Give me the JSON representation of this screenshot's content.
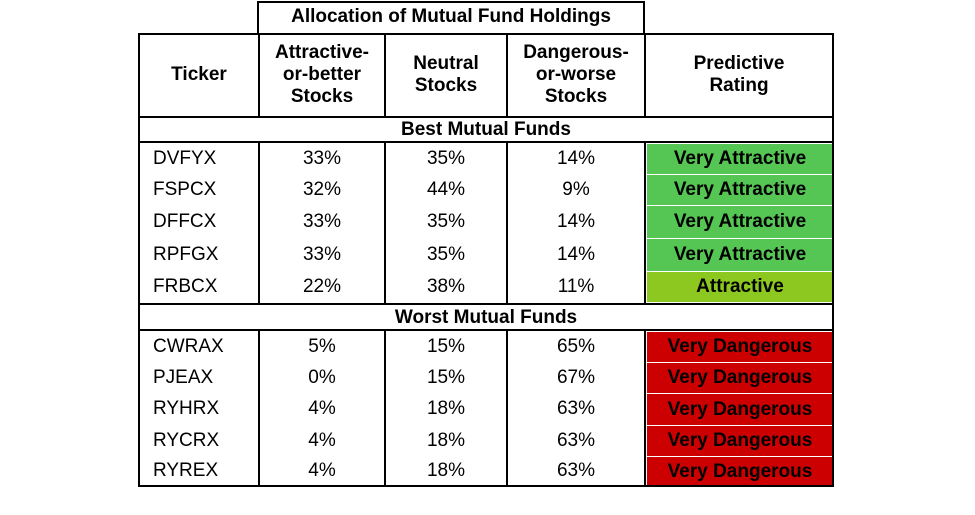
{
  "table": {
    "group_header": "Allocation of Mutual Fund Holdings",
    "columns": {
      "ticker": "Ticker",
      "attractive": "Attractive-\nor-better\nStocks",
      "neutral": "Neutral\nStocks",
      "dangerous": "Dangerous-\nor-worse\nStocks",
      "rating": "Predictive\nRating"
    },
    "best_section_label": "Best Mutual Funds",
    "worst_section_label": "Worst Mutual Funds",
    "best_rows": [
      {
        "ticker": "DVFYX",
        "attractive": "33%",
        "neutral": "35%",
        "dangerous": "14%",
        "rating": "Very Attractive",
        "rating_color": "#55c553"
      },
      {
        "ticker": "FSPCX",
        "attractive": "32%",
        "neutral": "44%",
        "dangerous": "9%",
        "rating": "Very Attractive",
        "rating_color": "#55c553"
      },
      {
        "ticker": "DFFCX",
        "attractive": "33%",
        "neutral": "35%",
        "dangerous": "14%",
        "rating": "Very Attractive",
        "rating_color": "#55c553"
      },
      {
        "ticker": "RPFGX",
        "attractive": "33%",
        "neutral": "35%",
        "dangerous": "14%",
        "rating": "Very Attractive",
        "rating_color": "#55c553"
      },
      {
        "ticker": "FRBCX",
        "attractive": "22%",
        "neutral": "38%",
        "dangerous": "11%",
        "rating": "Attractive",
        "rating_color": "#8cc820"
      }
    ],
    "worst_rows": [
      {
        "ticker": "CWRAX",
        "attractive": "5%",
        "neutral": "15%",
        "dangerous": "65%",
        "rating": "Very Dangerous",
        "rating_color": "#cc0000"
      },
      {
        "ticker": "PJEAX",
        "attractive": "0%",
        "neutral": "15%",
        "dangerous": "67%",
        "rating": "Very Dangerous",
        "rating_color": "#cc0000"
      },
      {
        "ticker": "RYHRX",
        "attractive": "4%",
        "neutral": "18%",
        "dangerous": "63%",
        "rating": "Very Dangerous",
        "rating_color": "#cc0000"
      },
      {
        "ticker": "RYCRX",
        "attractive": "4%",
        "neutral": "18%",
        "dangerous": "63%",
        "rating": "Very Dangerous",
        "rating_color": "#cc0000"
      },
      {
        "ticker": "RYREX",
        "attractive": "4%",
        "neutral": "18%",
        "dangerous": "63%",
        "rating": "Very Dangerous",
        "rating_color": "#cc0000"
      }
    ]
  }
}
